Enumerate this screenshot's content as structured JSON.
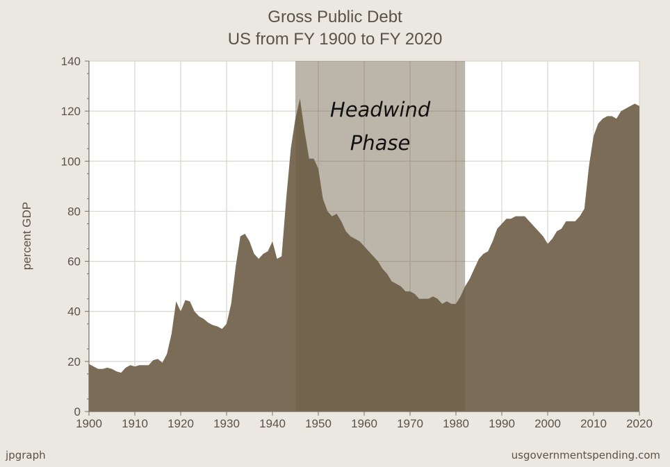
{
  "chart_data": {
    "type": "area",
    "title": "Gross Public Debt",
    "subtitle": "US from FY 1900 to FY 2020",
    "xlabel": "",
    "ylabel": "percent GDP",
    "xlim": [
      1900,
      2020
    ],
    "ylim": [
      0,
      140
    ],
    "x_ticks": [
      "1900",
      "1910",
      "1920",
      "1930",
      "1940",
      "1950",
      "1960",
      "1970",
      "1980",
      "1990",
      "2000",
      "2010",
      "2020"
    ],
    "y_ticks": [
      "0",
      "20",
      "40",
      "60",
      "80",
      "100",
      "120",
      "140"
    ],
    "grid": true,
    "series": [
      {
        "name": "",
        "x": [
          1900,
          1901,
          1902,
          1903,
          1904,
          1905,
          1906,
          1907,
          1908,
          1909,
          1910,
          1911,
          1912,
          1913,
          1914,
          1915,
          1916,
          1917,
          1918,
          1919,
          1920,
          1921,
          1922,
          1923,
          1924,
          1925,
          1926,
          1927,
          1928,
          1929,
          1930,
          1931,
          1932,
          1933,
          1934,
          1935,
          1936,
          1937,
          1938,
          1939,
          1940,
          1941,
          1942,
          1943,
          1944,
          1945,
          1946,
          1947,
          1948,
          1949,
          1950,
          1951,
          1952,
          1953,
          1954,
          1955,
          1956,
          1957,
          1958,
          1959,
          1960,
          1961,
          1962,
          1963,
          1964,
          1965,
          1966,
          1967,
          1968,
          1969,
          1970,
          1971,
          1972,
          1973,
          1974,
          1975,
          1976,
          1977,
          1978,
          1979,
          1980,
          1981,
          1982,
          1983,
          1984,
          1985,
          1986,
          1987,
          1988,
          1989,
          1990,
          1991,
          1992,
          1993,
          1994,
          1995,
          1996,
          1997,
          1998,
          1999,
          2000,
          2001,
          2002,
          2003,
          2004,
          2005,
          2006,
          2007,
          2008,
          2009,
          2010,
          2011,
          2012,
          2013,
          2014,
          2015,
          2016,
          2017,
          2018,
          2019,
          2020
        ],
        "values": [
          19,
          18,
          17,
          17,
          17.5,
          17,
          16,
          15.5,
          17.5,
          18.5,
          18,
          18.5,
          18.5,
          18.5,
          20.5,
          21,
          19.5,
          23,
          31,
          44,
          40,
          44.5,
          44,
          40,
          38,
          37,
          35.5,
          34.5,
          34,
          33,
          35,
          43,
          58,
          70,
          71,
          68,
          63,
          61,
          63,
          64,
          68,
          61,
          62,
          85,
          105,
          117,
          125,
          112,
          101,
          101,
          97,
          85,
          80,
          78,
          79,
          76,
          72,
          70,
          69,
          68,
          66,
          64,
          62,
          60,
          57,
          55,
          52,
          51,
          50,
          48,
          48,
          47,
          45,
          45,
          45,
          46,
          45,
          43,
          44,
          43,
          43,
          46,
          50,
          53,
          57,
          61,
          63,
          64,
          68,
          73,
          75,
          77,
          77,
          78,
          78,
          78,
          76,
          74,
          72,
          70,
          67,
          69,
          72,
          73,
          76,
          76,
          76,
          78,
          81,
          98,
          110,
          115,
          117,
          118,
          118,
          117,
          120,
          121,
          122,
          123,
          122
        ]
      }
    ],
    "annotations": [
      {
        "text_lines": [
          "Headwind",
          "Phase"
        ],
        "shaded_x_range": [
          1945,
          1982
        ]
      }
    ],
    "footer_left": "jpgraph",
    "footer_right": "usgovernmentspending.com",
    "colors": {
      "background": "#ebe8e1",
      "plot_background": "#ffffff",
      "grid": "#d9d4ca",
      "area_fill": "#7b6c58",
      "shade_fill": "#6a5a42",
      "text": "#5b5146"
    }
  }
}
